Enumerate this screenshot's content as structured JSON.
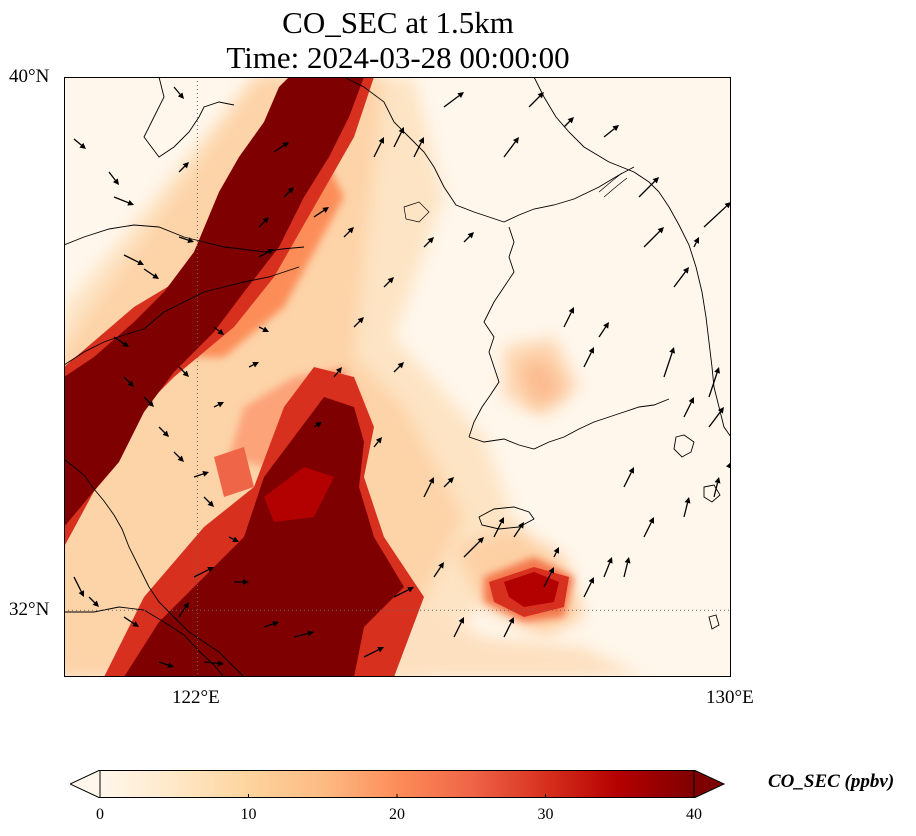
{
  "title": {
    "line1": "CO_SEC at 1.5km",
    "line2": "Time: 2024-03-28 00:00:00"
  },
  "axes": {
    "lat_labels": [
      "40°N",
      "32°N"
    ],
    "lon_labels": [
      "122°E",
      "130°E"
    ],
    "extent": {
      "lon_min": 120,
      "lon_max": 130,
      "lat_min": 31,
      "lat_max": 40
    },
    "gridlines": {
      "lon": [
        122
      ],
      "lat": [
        32
      ],
      "style": "dotted"
    }
  },
  "colorbar": {
    "label": "CO_SEC (ppbv)",
    "ticks": [
      "0",
      "10",
      "20",
      "30",
      "40"
    ],
    "vmin": 0,
    "vmax": 40,
    "extend": "both",
    "colormap": "OrRd",
    "colors": [
      "#fff7ec",
      "#fee8c8",
      "#fdd49e",
      "#fdbb84",
      "#fc8d59",
      "#ef6548",
      "#d7301f",
      "#b30000",
      "#7f0000"
    ]
  },
  "map_data": {
    "field": "CO_SEC",
    "level": "1.5km",
    "units": "ppbv",
    "high_plumes": [
      {
        "region": "Yellow Sea southwest diagonal band",
        "value": "≥40"
      },
      {
        "region": "East China Sea north of Shanghai",
        "value": "≥40"
      },
      {
        "region": "south of Jeju Island",
        "value": "30-40"
      },
      {
        "region": "southwestern Korean Peninsula",
        "value": "15-25"
      }
    ],
    "background_value": "0-5",
    "wind_vectors": "southwesterly-to-southerly flow over Korea and East China Sea, northwesterly over northern Yellow Sea"
  }
}
